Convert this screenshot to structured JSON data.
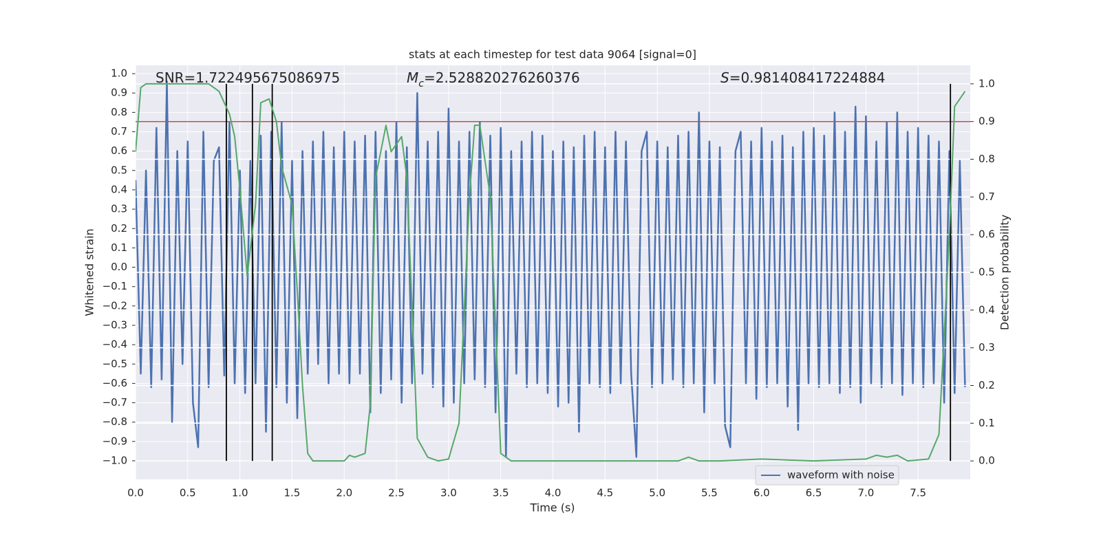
{
  "chart_data": {
    "type": "line",
    "title": "stats at each timestep for test data 9064 [signal=0]",
    "xlabel": "Time (s)",
    "ylabel": "Whitened strain",
    "y2label": "Detection probability",
    "xlim": [
      0,
      8.0
    ],
    "ylim": [
      -1.096,
      1.043
    ],
    "y2lim": [
      -0.049,
      1.049
    ],
    "xticks": [
      {
        "value": 0,
        "label": "0.0"
      },
      0.5,
      {
        "value": 1,
        "label": "1.0"
      },
      1.5,
      {
        "value": 2,
        "label": "2.0"
      },
      2.5,
      {
        "value": 3,
        "label": "3.0"
      },
      3.5,
      {
        "value": 4,
        "label": "4.0"
      },
      4.5,
      {
        "value": 5,
        "label": "5.0"
      },
      5.5,
      {
        "value": 6,
        "label": "6.0"
      },
      6.5,
      {
        "value": 7,
        "label": "7.0"
      },
      7.5
    ],
    "yticks": [
      {
        "value": -1,
        "label": "−1.0"
      },
      {
        "value": -0.9,
        "label": "−0.9"
      },
      {
        "value": -0.8,
        "label": "−0.8"
      },
      {
        "value": -0.7,
        "label": "−0.7"
      },
      {
        "value": -0.6,
        "label": "−0.6"
      },
      {
        "value": -0.5,
        "label": "−0.5"
      },
      {
        "value": -0.4,
        "label": "−0.4"
      },
      {
        "value": -0.3,
        "label": "−0.3"
      },
      {
        "value": -0.2,
        "label": "−0.2"
      },
      {
        "value": -0.1,
        "label": "−0.1"
      },
      {
        "value": 0,
        "label": "0.0"
      },
      0.1,
      0.2,
      0.3,
      0.4,
      0.5,
      0.6,
      0.7,
      0.8,
      0.9,
      {
        "value": 1,
        "label": "1.0"
      }
    ],
    "y2ticks": [
      {
        "value": 0,
        "label": "0.0"
      },
      0.1,
      0.2,
      0.3,
      0.4,
      0.5,
      0.6,
      0.7,
      0.8,
      0.9,
      {
        "value": 1,
        "label": "1.0"
      }
    ],
    "grid": true,
    "legend": "lower right",
    "annotations": [
      {
        "text": "SNR=1.722495675086975"
      },
      {
        "symbol": "M",
        "subscript": "c",
        "text": "=2.528820276260376"
      },
      {
        "symbol": "S",
        "text": "=0.981408417224884"
      }
    ],
    "hline": {
      "value": 0.9,
      "axis": "y2",
      "color": "#c44e52"
    },
    "vlines": {
      "x": [
        0.87,
        1.12,
        1.31,
        7.81
      ],
      "y2range": [
        0,
        1
      ],
      "color": "#000000"
    },
    "series": [
      {
        "name": "waveform with noise",
        "color": "#4c72b0",
        "x": [
          0,
          0.05,
          0.1,
          0.15,
          0.2,
          0.25,
          0.3,
          0.35,
          0.4,
          0.45,
          0.5,
          0.55,
          0.6,
          0.65,
          0.7,
          0.75,
          0.8,
          0.85,
          0.9,
          0.95,
          1.0,
          1.05,
          1.1,
          1.15,
          1.2,
          1.25,
          1.3,
          1.35,
          1.4,
          1.45,
          1.5,
          1.55,
          1.6,
          1.65,
          1.7,
          1.75,
          1.8,
          1.85,
          1.9,
          1.95,
          2.0,
          2.05,
          2.1,
          2.15,
          2.2,
          2.25,
          2.3,
          2.35,
          2.4,
          2.45,
          2.5,
          2.55,
          2.6,
          2.65,
          2.7,
          2.75,
          2.8,
          2.85,
          2.9,
          2.95,
          3.0,
          3.05,
          3.1,
          3.15,
          3.2,
          3.25,
          3.3,
          3.35,
          3.4,
          3.45,
          3.5,
          3.55,
          3.6,
          3.65,
          3.7,
          3.75,
          3.8,
          3.85,
          3.9,
          3.95,
          4.0,
          4.05,
          4.1,
          4.15,
          4.2,
          4.25,
          4.3,
          4.35,
          4.4,
          4.45,
          4.5,
          4.55,
          4.6,
          4.65,
          4.7,
          4.75,
          4.8,
          4.85,
          4.9,
          4.95,
          5.0,
          5.05,
          5.1,
          5.15,
          5.2,
          5.25,
          5.3,
          5.35,
          5.4,
          5.45,
          5.5,
          5.55,
          5.6,
          5.65,
          5.7,
          5.75,
          5.8,
          5.85,
          5.9,
          5.95,
          6.0,
          6.05,
          6.1,
          6.15,
          6.2,
          6.25,
          6.3,
          6.35,
          6.4,
          6.45,
          6.5,
          6.55,
          6.6,
          6.65,
          6.7,
          6.75,
          6.8,
          6.85,
          6.9,
          6.95,
          7.0,
          7.05,
          7.1,
          7.15,
          7.2,
          7.25,
          7.3,
          7.35,
          7.4,
          7.45,
          7.5,
          7.55,
          7.6,
          7.65,
          7.7,
          7.75,
          7.8,
          7.85,
          7.9,
          7.95
        ],
        "values": [
          0.45,
          -0.55,
          0.5,
          -0.62,
          0.72,
          -0.58,
          0.96,
          -0.8,
          0.6,
          -0.5,
          0.65,
          -0.7,
          -0.93,
          0.7,
          -0.62,
          0.55,
          0.62,
          -0.56,
          0.75,
          -0.6,
          0.5,
          -0.65,
          0.55,
          -0.6,
          0.68,
          -0.85,
          0.7,
          -0.62,
          0.75,
          -0.7,
          0.55,
          -0.78,
          0.6,
          -0.55,
          0.65,
          -0.5,
          0.7,
          -0.6,
          0.62,
          -0.55,
          0.7,
          -0.6,
          0.65,
          -0.55,
          0.68,
          -0.75,
          0.7,
          -0.65,
          0.6,
          -0.58,
          0.75,
          -0.7,
          0.62,
          -0.6,
          0.9,
          -0.55,
          0.65,
          -0.62,
          0.7,
          -0.72,
          0.82,
          -0.7,
          0.65,
          -0.6,
          0.7,
          -0.58,
          0.75,
          -0.62,
          0.68,
          -0.75,
          0.72,
          -0.98,
          0.6,
          -0.55,
          0.65,
          -0.62,
          0.7,
          -0.6,
          0.68,
          -0.65,
          0.6,
          -0.72,
          0.65,
          -0.7,
          0.62,
          -0.85,
          0.68,
          -0.6,
          0.7,
          -0.62,
          0.62,
          -0.65,
          0.7,
          -0.6,
          0.65,
          -0.55,
          -0.98,
          0.6,
          0.7,
          -0.62,
          0.65,
          -0.6,
          0.62,
          -0.58,
          0.68,
          -0.62,
          0.7,
          -0.6,
          0.8,
          -0.75,
          0.65,
          -0.6,
          0.62,
          -0.82,
          -0.93,
          0.6,
          0.7,
          -0.6,
          0.65,
          -0.68,
          0.72,
          -0.62,
          0.65,
          -0.6,
          0.68,
          -0.72,
          0.62,
          -0.84,
          0.7,
          -0.6,
          0.72,
          -0.62,
          0.68,
          -0.6,
          0.8,
          -0.65,
          0.7,
          -0.62,
          0.83,
          -0.7,
          0.78,
          -0.6,
          0.65,
          -0.62,
          0.75,
          -0.6,
          0.8,
          -0.66,
          0.7,
          -0.6,
          0.72,
          -0.62,
          0.68,
          -0.6,
          0.65,
          -0.7,
          0.6,
          -0.65,
          0.55,
          -0.62
        ]
      },
      {
        "color": "#55a868",
        "axis": "y2",
        "x": [
          0,
          0.05,
          0.1,
          0.2,
          0.3,
          0.4,
          0.5,
          0.6,
          0.7,
          0.8,
          0.9,
          0.95,
          1.0,
          1.07,
          1.15,
          1.2,
          1.28,
          1.35,
          1.4,
          1.5,
          1.55,
          1.6,
          1.65,
          1.7,
          1.8,
          1.9,
          2.0,
          2.05,
          2.1,
          2.2,
          2.25,
          2.3,
          2.4,
          2.45,
          2.55,
          2.6,
          2.7,
          2.8,
          2.9,
          3.0,
          3.1,
          3.2,
          3.25,
          3.3,
          3.4,
          3.5,
          3.6,
          3.8,
          4.0,
          4.5,
          5.0,
          5.2,
          5.3,
          5.4,
          5.6,
          6.0,
          6.5,
          7.0,
          7.1,
          7.2,
          7.3,
          7.4,
          7.6,
          7.7,
          7.8,
          7.85,
          7.95
        ],
        "values": [
          0.82,
          0.99,
          1.0,
          1.0,
          1.0,
          1.0,
          1.0,
          1.0,
          1.0,
          0.98,
          0.92,
          0.86,
          0.72,
          0.49,
          0.68,
          0.95,
          0.96,
          0.9,
          0.78,
          0.68,
          0.45,
          0.2,
          0.02,
          0.0,
          0.0,
          0.0,
          0.0,
          0.015,
          0.01,
          0.02,
          0.15,
          0.75,
          0.89,
          0.82,
          0.86,
          0.75,
          0.06,
          0.01,
          0.0,
          0.005,
          0.1,
          0.7,
          0.89,
          0.89,
          0.7,
          0.02,
          0.0,
          0.0,
          0.0,
          0.0,
          0.0,
          0.0,
          0.01,
          0.0,
          0.0,
          0.005,
          0.0,
          0.005,
          0.015,
          0.01,
          0.015,
          0.0,
          0.005,
          0.07,
          0.6,
          0.94,
          0.98
        ]
      }
    ]
  }
}
